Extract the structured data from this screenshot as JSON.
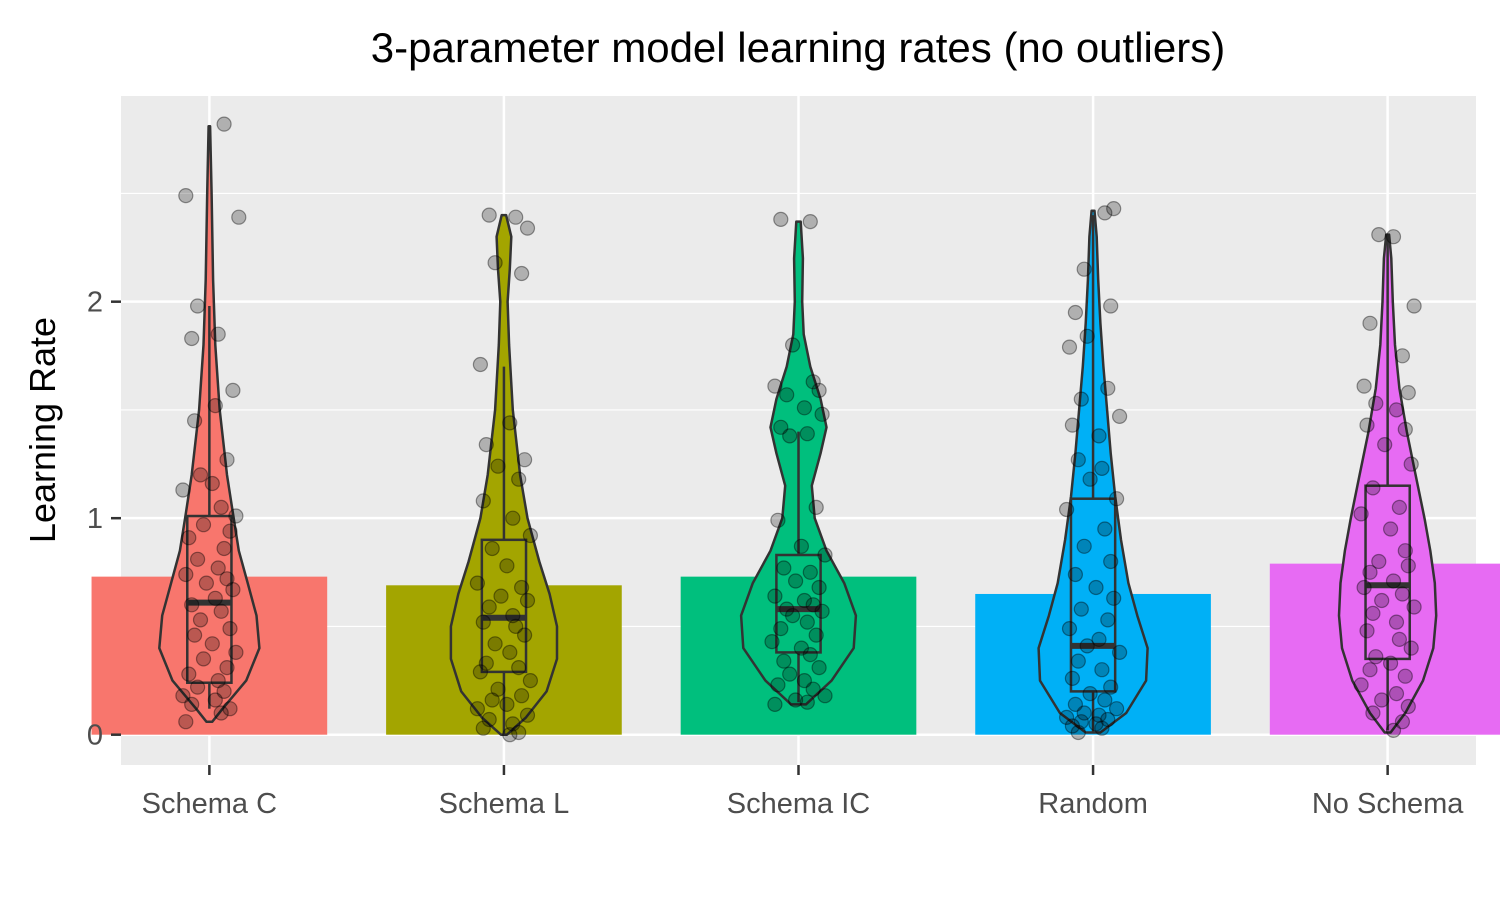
{
  "chart_data": {
    "type": "bar",
    "subtypes": [
      "violin",
      "boxplot",
      "jitter-points"
    ],
    "title": "3-parameter model learning rates (no outliers)",
    "xlabel": "",
    "ylabel": "Learning Rate",
    "ylim": [
      -0.14,
      2.95
    ],
    "yticks": [
      0,
      1,
      2
    ],
    "grid": true,
    "legend": "none",
    "categories": [
      "Schema C",
      "Schema L",
      "Schema IC",
      "Random",
      "No Schema"
    ],
    "colors": [
      "#F8766D",
      "#A3A500",
      "#00BF7D",
      "#00B0F6",
      "#E76BF3"
    ],
    "bar_values": [
      0.73,
      0.69,
      0.73,
      0.65,
      0.79
    ],
    "boxplots": [
      {
        "min": 0.12,
        "q1": 0.24,
        "median": 0.61,
        "q3": 1.01,
        "max": 1.98
      },
      {
        "min": 0.0,
        "q1": 0.29,
        "median": 0.54,
        "q3": 0.9,
        "max": 1.7
      },
      {
        "min": 0.15,
        "q1": 0.38,
        "median": 0.58,
        "q3": 0.83,
        "max": 1.4
      },
      {
        "min": 0.01,
        "q1": 0.2,
        "median": 0.41,
        "q3": 1.09,
        "max": 2.4
      },
      {
        "min": 0.02,
        "q1": 0.35,
        "median": 0.69,
        "q3": 1.15,
        "max": 2.31
      }
    ],
    "violins": [
      {
        "profile": [
          [
            0.06,
            0.04
          ],
          [
            0.12,
            0.18
          ],
          [
            0.25,
            0.5
          ],
          [
            0.4,
            0.68
          ],
          [
            0.55,
            0.64
          ],
          [
            0.7,
            0.52
          ],
          [
            0.85,
            0.4
          ],
          [
            1.0,
            0.33
          ],
          [
            1.2,
            0.24
          ],
          [
            1.5,
            0.14
          ],
          [
            1.8,
            0.08
          ],
          [
            2.1,
            0.05
          ],
          [
            2.5,
            0.03
          ],
          [
            2.81,
            0.01
          ]
        ]
      },
      {
        "profile": [
          [
            0.0,
            0.04
          ],
          [
            0.08,
            0.3
          ],
          [
            0.2,
            0.58
          ],
          [
            0.35,
            0.72
          ],
          [
            0.5,
            0.72
          ],
          [
            0.65,
            0.62
          ],
          [
            0.8,
            0.48
          ],
          [
            1.0,
            0.32
          ],
          [
            1.2,
            0.22
          ],
          [
            1.5,
            0.12
          ],
          [
            1.8,
            0.07
          ],
          [
            2.0,
            0.05
          ],
          [
            2.15,
            0.08
          ],
          [
            2.3,
            0.1
          ],
          [
            2.4,
            0.03
          ]
        ]
      },
      {
        "profile": [
          [
            0.14,
            0.1
          ],
          [
            0.25,
            0.45
          ],
          [
            0.4,
            0.75
          ],
          [
            0.55,
            0.78
          ],
          [
            0.7,
            0.62
          ],
          [
            0.85,
            0.38
          ],
          [
            1.0,
            0.22
          ],
          [
            1.15,
            0.18
          ],
          [
            1.3,
            0.3
          ],
          [
            1.42,
            0.38
          ],
          [
            1.55,
            0.3
          ],
          [
            1.7,
            0.16
          ],
          [
            1.85,
            0.07
          ],
          [
            2.0,
            0.05
          ],
          [
            2.2,
            0.06
          ],
          [
            2.37,
            0.03
          ]
        ]
      },
      {
        "profile": [
          [
            0.01,
            0.1
          ],
          [
            0.1,
            0.45
          ],
          [
            0.25,
            0.72
          ],
          [
            0.4,
            0.74
          ],
          [
            0.55,
            0.6
          ],
          [
            0.7,
            0.48
          ],
          [
            0.9,
            0.38
          ],
          [
            1.1,
            0.3
          ],
          [
            1.3,
            0.24
          ],
          [
            1.5,
            0.19
          ],
          [
            1.7,
            0.14
          ],
          [
            1.9,
            0.1
          ],
          [
            2.1,
            0.07
          ],
          [
            2.3,
            0.05
          ],
          [
            2.42,
            0.02
          ]
        ]
      },
      {
        "profile": [
          [
            0.01,
            0.04
          ],
          [
            0.1,
            0.24
          ],
          [
            0.25,
            0.48
          ],
          [
            0.4,
            0.62
          ],
          [
            0.55,
            0.66
          ],
          [
            0.7,
            0.64
          ],
          [
            0.85,
            0.58
          ],
          [
            1.0,
            0.5
          ],
          [
            1.2,
            0.38
          ],
          [
            1.4,
            0.26
          ],
          [
            1.6,
            0.16
          ],
          [
            1.8,
            0.1
          ],
          [
            2.0,
            0.07
          ],
          [
            2.2,
            0.05
          ],
          [
            2.31,
            0.02
          ]
        ]
      }
    ],
    "points": [
      {
        "x": [
          0.05,
          -0.08,
          0.1,
          -0.04,
          0.03,
          -0.06,
          0.08,
          0.02,
          -0.05,
          0.06,
          -0.03,
          0.01,
          -0.09,
          0.04,
          0.09,
          -0.02,
          0.07,
          -0.07,
          0.05,
          -0.04,
          0.03,
          -0.08,
          0.06,
          -0.01,
          0.08,
          0.02,
          -0.06,
          0.04,
          -0.03,
          0.07,
          -0.05,
          0.01,
          0.09,
          -0.02,
          0.06,
          -0.07,
          0.03,
          -0.04,
          0.05,
          -0.09,
          0.02,
          -0.06,
          0.07,
          0.04,
          -0.08
        ],
        "y": [
          2.82,
          2.49,
          2.39,
          1.98,
          1.85,
          1.83,
          1.59,
          1.52,
          1.45,
          1.27,
          1.2,
          1.16,
          1.13,
          1.05,
          1.01,
          0.97,
          0.94,
          0.91,
          0.86,
          0.81,
          0.77,
          0.74,
          0.72,
          0.7,
          0.67,
          0.63,
          0.6,
          0.57,
          0.53,
          0.49,
          0.46,
          0.42,
          0.38,
          0.35,
          0.31,
          0.28,
          0.25,
          0.22,
          0.2,
          0.18,
          0.16,
          0.14,
          0.12,
          0.1,
          0.06
        ]
      },
      {
        "x": [
          -0.05,
          0.04,
          0.08,
          -0.03,
          0.06,
          -0.08,
          0.02,
          -0.06,
          0.07,
          -0.02,
          0.05,
          -0.07,
          0.03,
          0.09,
          -0.04,
          0.01,
          -0.09,
          0.06,
          -0.01,
          0.08,
          -0.05,
          0.03,
          -0.07,
          0.04,
          0.07,
          -0.03,
          0.02,
          -0.06,
          0.05,
          -0.08,
          0.09,
          -0.02,
          0.06,
          -0.04,
          0.01,
          -0.09,
          0.08,
          -0.05,
          0.03,
          -0.07,
          0.05,
          0.02
        ],
        "y": [
          2.4,
          2.39,
          2.34,
          2.18,
          2.13,
          1.71,
          1.44,
          1.34,
          1.27,
          1.24,
          1.18,
          1.08,
          1.0,
          0.92,
          0.86,
          0.78,
          0.7,
          0.68,
          0.64,
          0.62,
          0.59,
          0.55,
          0.52,
          0.5,
          0.46,
          0.42,
          0.38,
          0.33,
          0.31,
          0.29,
          0.25,
          0.21,
          0.18,
          0.16,
          0.14,
          0.12,
          0.09,
          0.07,
          0.05,
          0.03,
          0.01,
          0.0
        ]
      },
      {
        "x": [
          -0.06,
          0.04,
          -0.02,
          0.05,
          -0.08,
          0.07,
          -0.04,
          0.02,
          0.08,
          -0.06,
          0.03,
          -0.03,
          0.06,
          -0.07,
          0.01,
          0.09,
          -0.05,
          0.04,
          -0.01,
          0.07,
          -0.08,
          0.02,
          0.05,
          -0.04,
          0.08,
          -0.02,
          0.03,
          -0.06,
          0.06,
          -0.09,
          0.01,
          0.04,
          -0.05,
          0.07,
          -0.03,
          0.02,
          -0.07,
          0.05,
          0.09,
          -0.01,
          0.03,
          -0.08
        ],
        "y": [
          2.38,
          2.37,
          1.8,
          1.63,
          1.61,
          1.59,
          1.57,
          1.51,
          1.48,
          1.42,
          1.39,
          1.38,
          1.05,
          0.99,
          0.87,
          0.83,
          0.77,
          0.75,
          0.71,
          0.68,
          0.64,
          0.62,
          0.6,
          0.58,
          0.57,
          0.55,
          0.52,
          0.49,
          0.46,
          0.43,
          0.4,
          0.37,
          0.34,
          0.31,
          0.28,
          0.25,
          0.23,
          0.21,
          0.18,
          0.16,
          0.15,
          0.14
        ]
      },
      {
        "x": [
          0.07,
          0.04,
          -0.03,
          0.06,
          -0.06,
          -0.02,
          -0.08,
          0.05,
          -0.04,
          0.09,
          -0.07,
          0.02,
          -0.05,
          0.03,
          -0.01,
          0.08,
          -0.09,
          0.04,
          -0.03,
          0.06,
          -0.06,
          0.01,
          0.07,
          -0.04,
          0.05,
          -0.08,
          0.02,
          -0.02,
          0.09,
          -0.05,
          0.03,
          -0.07,
          0.06,
          -0.01,
          0.04,
          -0.06,
          0.08,
          -0.03,
          0.02,
          -0.09,
          0.05,
          -0.04,
          0.01,
          -0.07,
          0.03,
          -0.05
        ],
        "y": [
          2.43,
          2.41,
          2.15,
          1.98,
          1.95,
          1.84,
          1.79,
          1.6,
          1.55,
          1.47,
          1.43,
          1.38,
          1.27,
          1.23,
          1.18,
          1.09,
          1.04,
          0.95,
          0.87,
          0.8,
          0.74,
          0.68,
          0.63,
          0.58,
          0.53,
          0.49,
          0.44,
          0.41,
          0.38,
          0.34,
          0.3,
          0.26,
          0.22,
          0.19,
          0.16,
          0.14,
          0.12,
          0.1,
          0.09,
          0.08,
          0.07,
          0.06,
          0.05,
          0.04,
          0.03,
          0.01
        ]
      },
      {
        "x": [
          -0.03,
          0.02,
          0.09,
          -0.06,
          0.05,
          -0.08,
          0.07,
          -0.04,
          0.03,
          -0.07,
          0.06,
          -0.01,
          0.08,
          -0.05,
          0.04,
          -0.09,
          0.01,
          0.06,
          -0.03,
          0.07,
          -0.06,
          0.02,
          -0.08,
          0.05,
          -0.02,
          0.09,
          -0.05,
          0.03,
          -0.07,
          0.04,
          0.08,
          -0.04,
          0.01,
          -0.06,
          0.06,
          -0.09,
          0.03,
          -0.02,
          0.07,
          -0.05,
          0.05,
          0.02
        ],
        "y": [
          2.31,
          2.3,
          1.98,
          1.9,
          1.75,
          1.61,
          1.58,
          1.53,
          1.5,
          1.43,
          1.41,
          1.34,
          1.25,
          1.14,
          1.05,
          1.02,
          0.95,
          0.85,
          0.8,
          0.78,
          0.75,
          0.71,
          0.68,
          0.65,
          0.62,
          0.59,
          0.56,
          0.52,
          0.48,
          0.44,
          0.4,
          0.36,
          0.33,
          0.3,
          0.27,
          0.23,
          0.19,
          0.16,
          0.13,
          0.1,
          0.06,
          0.02
        ]
      }
    ]
  }
}
